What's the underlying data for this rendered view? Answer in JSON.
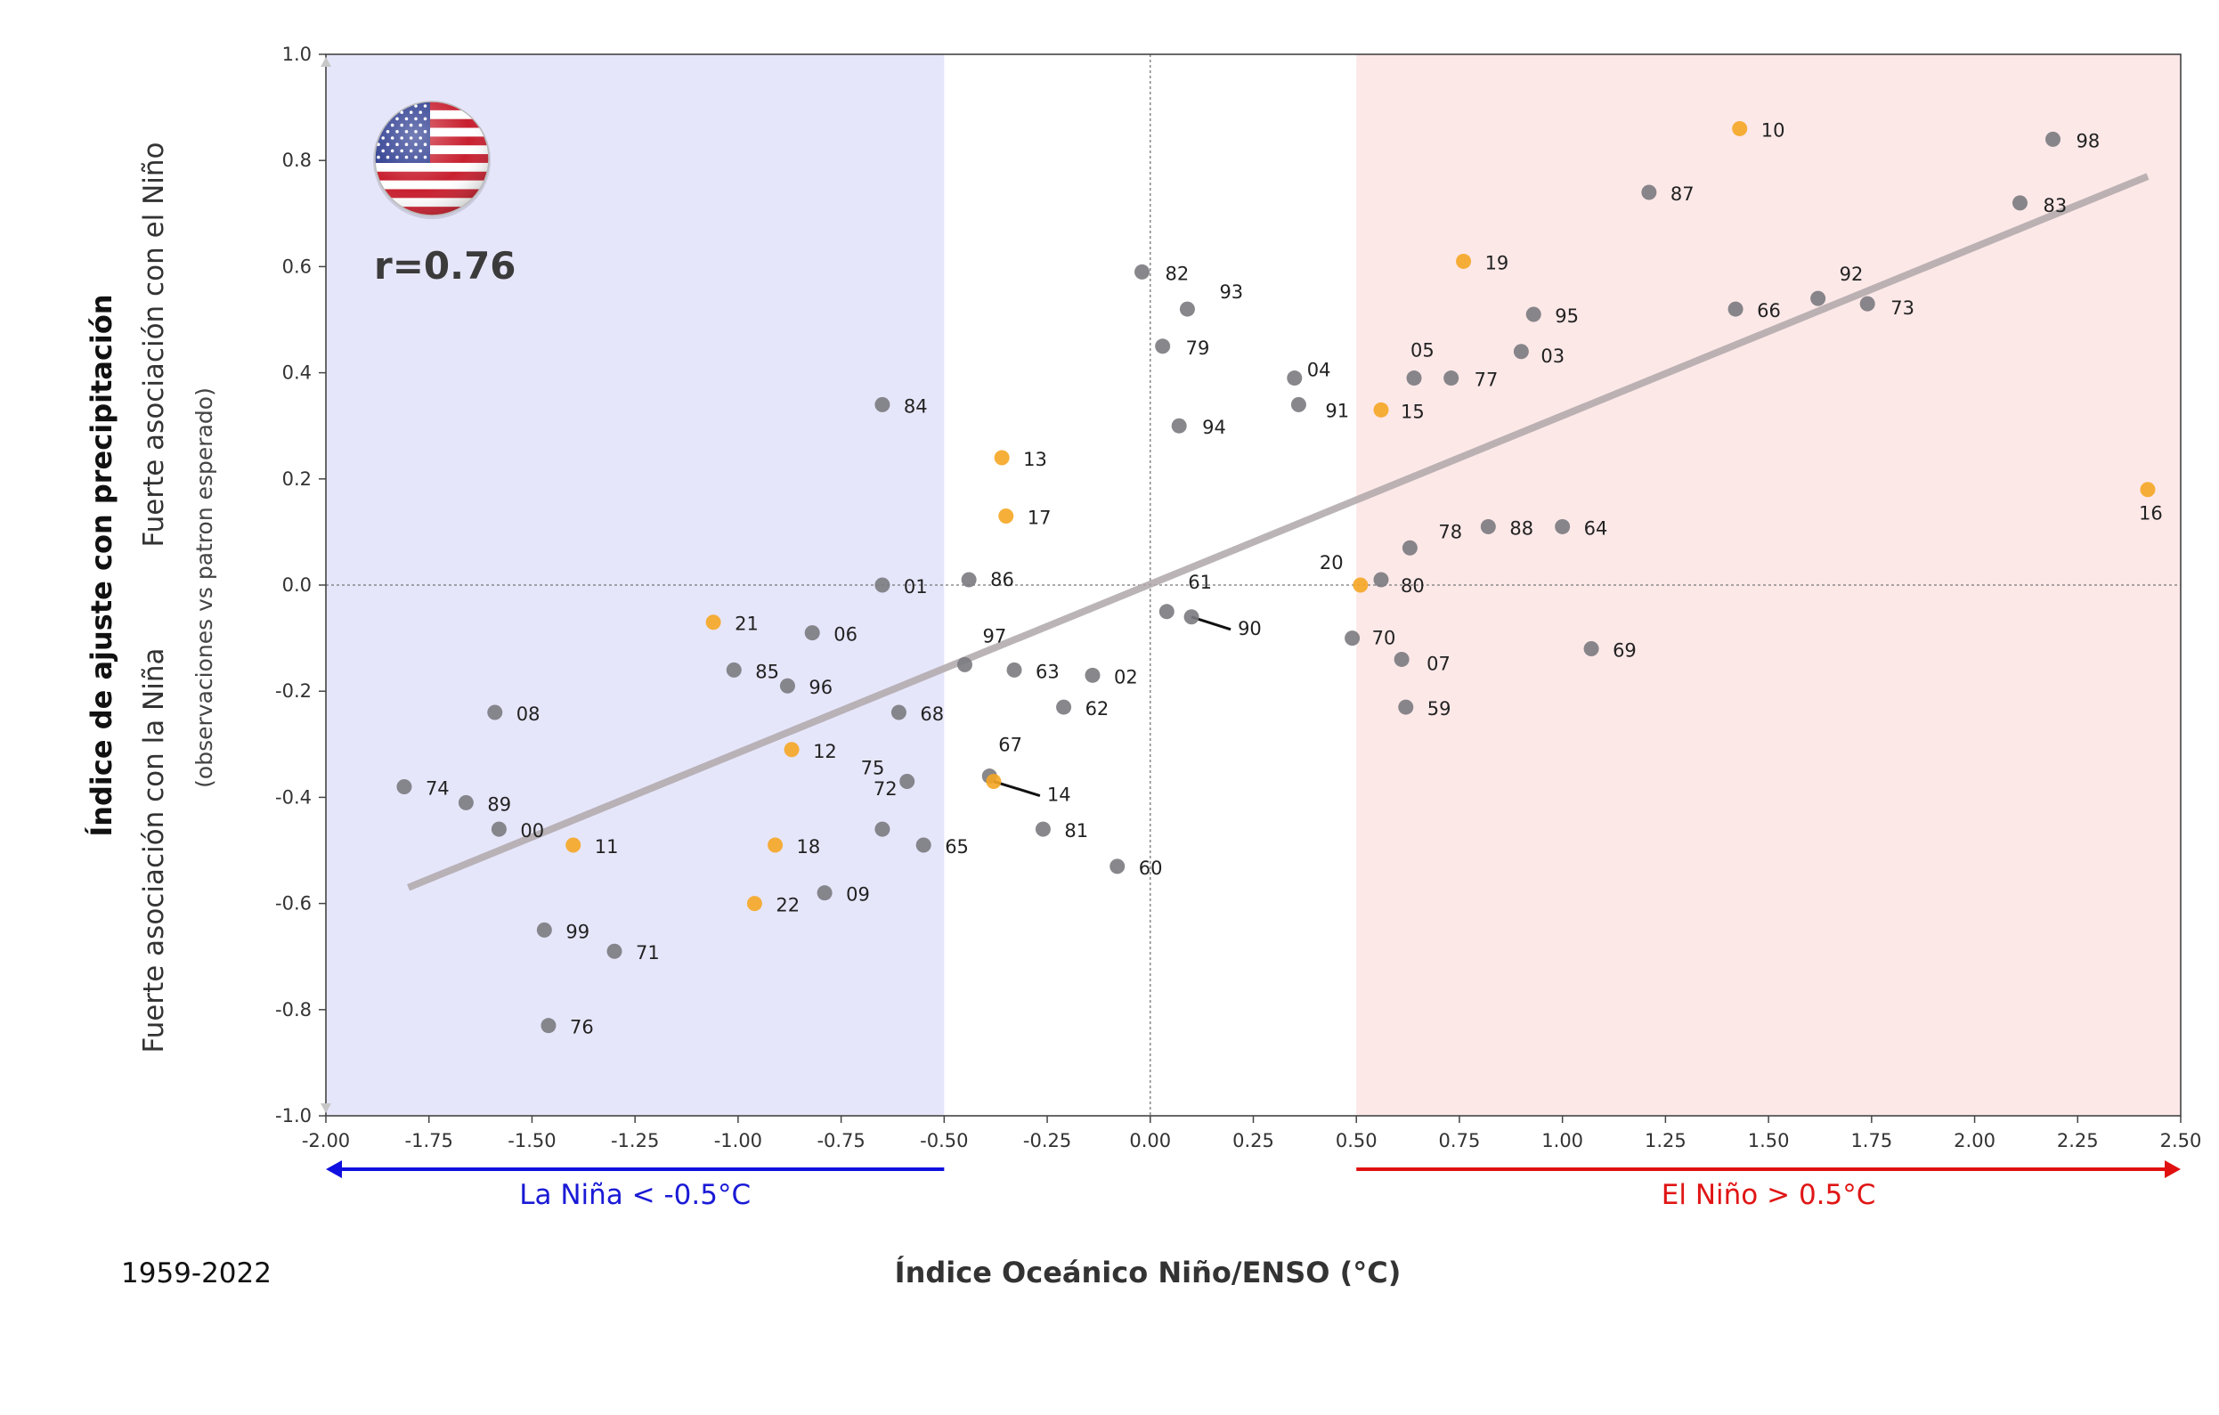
{
  "chart_data": {
    "type": "scatter",
    "xlabel": "Índice Oceánico Niño/ENSO (°C)",
    "ylabel": "Índice de ajuste con precipitación",
    "ylabel_upper": "Fuerte asociación con el Niño",
    "ylabel_lower": "Fuerte asociación con la Niña",
    "ylabel_note": "(observaciones vs patron esperado)",
    "period": "1959-2022",
    "correlation": "r=0.76",
    "flag_icon": "usa-flag-icon",
    "xlim": [
      -2.0,
      2.5
    ],
    "ylim": [
      -1.0,
      1.0
    ],
    "xticks": [
      "-2.00",
      "-1.75",
      "-1.50",
      "-1.25",
      "-1.00",
      "-0.75",
      "-0.50",
      "-0.25",
      "0.00",
      "0.25",
      "0.50",
      "0.75",
      "1.00",
      "1.25",
      "1.50",
      "1.75",
      "2.00",
      "2.25",
      "2.50"
    ],
    "yticks": [
      "1.0",
      "0.8",
      "0.6",
      "0.4",
      "0.2",
      "0.0",
      "-0.2",
      "-0.4",
      "-0.6",
      "-0.8",
      "-1.0"
    ],
    "grid": false,
    "regions": [
      {
        "label": "La Niña < -0.5°C",
        "from": -2.0,
        "to": -0.5,
        "color": "#e6e6fb",
        "arrow_color": "#1010e0"
      },
      {
        "label": "El Niño > 0.5°C",
        "from": 0.5,
        "to": 2.5,
        "color": "#fde8e8",
        "arrow_color": "#e01010"
      }
    ],
    "trend_line": {
      "x": [
        -1.8,
        2.42
      ],
      "y": [
        -0.57,
        0.77
      ]
    },
    "colors": {
      "default": "#7a7a80",
      "recent": "#f5a623",
      "trend": "#b0a8aa"
    },
    "points": [
      {
        "label": "10",
        "x": 1.43,
        "y": 0.86,
        "highlight": true
      },
      {
        "label": "98",
        "x": 2.19,
        "y": 0.84,
        "highlight": false
      },
      {
        "label": "87",
        "x": 1.21,
        "y": 0.74,
        "highlight": false
      },
      {
        "label": "83",
        "x": 2.11,
        "y": 0.72,
        "highlight": false
      },
      {
        "label": "19",
        "x": 0.76,
        "y": 0.61,
        "highlight": true
      },
      {
        "label": "82",
        "x": -0.02,
        "y": 0.59,
        "highlight": false
      },
      {
        "label": "92",
        "x": 1.62,
        "y": 0.54,
        "highlight": false
      },
      {
        "label": "73",
        "x": 1.74,
        "y": 0.53,
        "highlight": false
      },
      {
        "label": "66",
        "x": 1.42,
        "y": 0.52,
        "highlight": false
      },
      {
        "label": "93",
        "x": 0.09,
        "y": 0.52,
        "highlight": false
      },
      {
        "label": "95",
        "x": 0.93,
        "y": 0.51,
        "highlight": false
      },
      {
        "label": "79",
        "x": 0.03,
        "y": 0.45,
        "highlight": false
      },
      {
        "label": "03",
        "x": 0.9,
        "y": 0.44,
        "highlight": false
      },
      {
        "label": "05",
        "x": 0.64,
        "y": 0.39,
        "highlight": false
      },
      {
        "label": "77",
        "x": 0.73,
        "y": 0.39,
        "highlight": false
      },
      {
        "label": "04",
        "x": 0.35,
        "y": 0.39,
        "highlight": false
      },
      {
        "label": "84",
        "x": -0.65,
        "y": 0.34,
        "highlight": false
      },
      {
        "label": "91",
        "x": 0.36,
        "y": 0.34,
        "highlight": false
      },
      {
        "label": "15",
        "x": 0.56,
        "y": 0.33,
        "highlight": true
      },
      {
        "label": "94",
        "x": 0.07,
        "y": 0.3,
        "highlight": false
      },
      {
        "label": "13",
        "x": -0.36,
        "y": 0.24,
        "highlight": true
      },
      {
        "label": "16",
        "x": 2.42,
        "y": 0.18,
        "highlight": true
      },
      {
        "label": "17",
        "x": -0.35,
        "y": 0.13,
        "highlight": true
      },
      {
        "label": "88",
        "x": 0.82,
        "y": 0.11,
        "highlight": false
      },
      {
        "label": "64",
        "x": 1.0,
        "y": 0.11,
        "highlight": false
      },
      {
        "label": "78",
        "x": 0.63,
        "y": 0.07,
        "highlight": false
      },
      {
        "label": "86",
        "x": -0.44,
        "y": 0.01,
        "highlight": false
      },
      {
        "label": "01",
        "x": -0.65,
        "y": 0.0,
        "highlight": false
      },
      {
        "label": "80",
        "x": 0.56,
        "y": 0.01,
        "highlight": false
      },
      {
        "label": "20",
        "x": 0.51,
        "y": 0.0,
        "highlight": true
      },
      {
        "label": "61",
        "x": 0.04,
        "y": -0.05,
        "highlight": false
      },
      {
        "label": "90",
        "x": 0.1,
        "y": -0.06,
        "highlight": false
      },
      {
        "label": "21",
        "x": -1.06,
        "y": -0.07,
        "highlight": true
      },
      {
        "label": "06",
        "x": -0.82,
        "y": -0.09,
        "highlight": false
      },
      {
        "label": "70",
        "x": 0.49,
        "y": -0.1,
        "highlight": false
      },
      {
        "label": "69",
        "x": 1.07,
        "y": -0.12,
        "highlight": false
      },
      {
        "label": "07",
        "x": 0.61,
        "y": -0.14,
        "highlight": false
      },
      {
        "label": "97",
        "x": -0.45,
        "y": -0.15,
        "highlight": false
      },
      {
        "label": "85",
        "x": -1.01,
        "y": -0.16,
        "highlight": false
      },
      {
        "label": "63",
        "x": -0.33,
        "y": -0.16,
        "highlight": false
      },
      {
        "label": "02",
        "x": -0.14,
        "y": -0.17,
        "highlight": false
      },
      {
        "label": "96",
        "x": -0.88,
        "y": -0.19,
        "highlight": false
      },
      {
        "label": "59",
        "x": 0.62,
        "y": -0.23,
        "highlight": false
      },
      {
        "label": "08",
        "x": -1.59,
        "y": -0.24,
        "highlight": false
      },
      {
        "label": "68",
        "x": -0.61,
        "y": -0.24,
        "highlight": false
      },
      {
        "label": "62",
        "x": -0.21,
        "y": -0.23,
        "highlight": false
      },
      {
        "label": "12",
        "x": -0.87,
        "y": -0.31,
        "highlight": true
      },
      {
        "label": "67",
        "x": -0.39,
        "y": -0.36,
        "highlight": false
      },
      {
        "label": "75",
        "x": -0.59,
        "y": -0.37,
        "highlight": false
      },
      {
        "label": "14",
        "x": -0.38,
        "y": -0.37,
        "highlight": true
      },
      {
        "label": "74",
        "x": -1.81,
        "y": -0.38,
        "highlight": false
      },
      {
        "label": "89",
        "x": -1.66,
        "y": -0.41,
        "highlight": false
      },
      {
        "label": "00",
        "x": -1.58,
        "y": -0.46,
        "highlight": false
      },
      {
        "label": "72",
        "x": -0.65,
        "y": -0.46,
        "highlight": false
      },
      {
        "label": "81",
        "x": -0.26,
        "y": -0.46,
        "highlight": false
      },
      {
        "label": "65",
        "x": -0.55,
        "y": -0.49,
        "highlight": false
      },
      {
        "label": "11",
        "x": -1.4,
        "y": -0.49,
        "highlight": true
      },
      {
        "label": "18",
        "x": -0.91,
        "y": -0.49,
        "highlight": true
      },
      {
        "label": "60",
        "x": -0.08,
        "y": -0.53,
        "highlight": false
      },
      {
        "label": "09",
        "x": -0.79,
        "y": -0.58,
        "highlight": false
      },
      {
        "label": "22",
        "x": -0.96,
        "y": -0.6,
        "highlight": true
      },
      {
        "label": "99",
        "x": -1.47,
        "y": -0.65,
        "highlight": false
      },
      {
        "label": "71",
        "x": -1.3,
        "y": -0.69,
        "highlight": false
      },
      {
        "label": "76",
        "x": -1.46,
        "y": -0.83,
        "highlight": false
      }
    ]
  }
}
